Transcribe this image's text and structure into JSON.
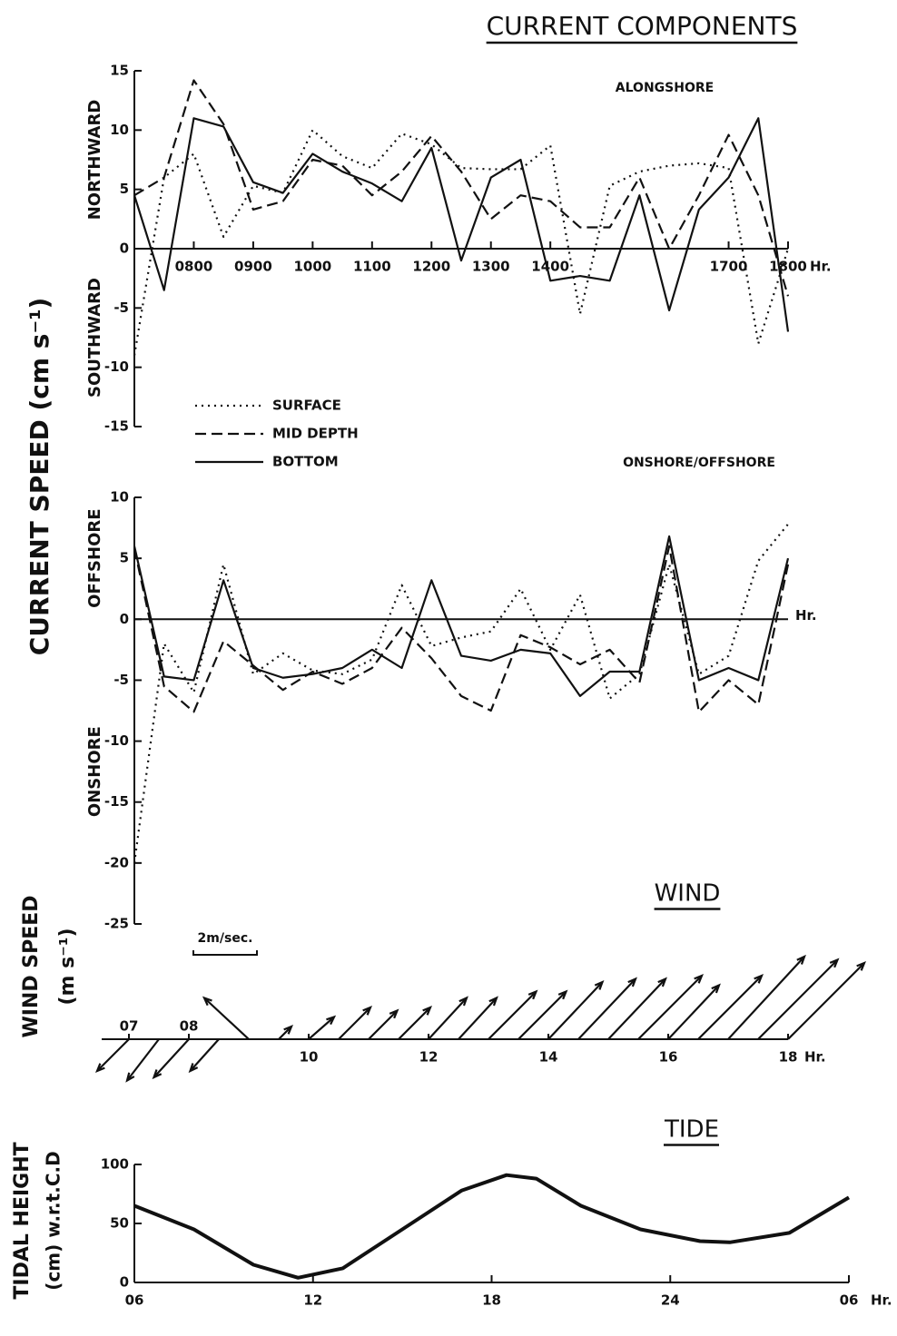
{
  "chart_data": [
    {
      "type": "line",
      "title": "CURRENT COMPONENTS",
      "panel_label": "ALONGSHORE",
      "y_label": "CURRENT SPEED (cm s⁻¹)",
      "y_upper_label": "NORTHWARD",
      "y_lower_label": "SOUTHWARD",
      "x": [
        7,
        7.5,
        8,
        8.5,
        9,
        9.5,
        10,
        10.5,
        11,
        11.5,
        12,
        12.5,
        13,
        13.5,
        14,
        14.5,
        15,
        15.5,
        16,
        16.5,
        17,
        17.5,
        18
      ],
      "xlim": [
        7,
        18
      ],
      "ylim": [
        -15,
        15
      ],
      "yticks": [
        -15,
        -10,
        -5,
        0,
        5,
        10,
        15
      ],
      "xticks": [
        {
          "value": 8,
          "label": "0800"
        },
        {
          "value": 9,
          "label": "0900"
        },
        {
          "value": 10,
          "label": "1000"
        },
        {
          "value": 11,
          "label": "1100"
        },
        {
          "value": 12,
          "label": "1200"
        },
        {
          "value": 13,
          "label": "1300"
        },
        {
          "value": 14,
          "label": "1400"
        },
        {
          "value": 17,
          "label": "1700"
        },
        {
          "value": 18,
          "label": "1800"
        }
      ],
      "x_unit": "Hr.",
      "series": [
        {
          "name": "SURFACE",
          "dash": "dotted",
          "color": "#111",
          "values": [
            -9,
            6,
            8,
            1,
            5.3,
            4.7,
            10,
            7.8,
            6.8,
            9.7,
            8.8,
            6.8,
            6.7,
            6.7,
            8.7,
            -5.5,
            5.3,
            6.5,
            7,
            7.2,
            6.8,
            -8,
            0
          ]
        },
        {
          "name": "MID DEPTH",
          "dash": "dashed",
          "color": "#111",
          "values": [
            4.5,
            6,
            14.2,
            10.5,
            3.3,
            4,
            7.5,
            7,
            4.5,
            6.5,
            9.5,
            6.5,
            2.5,
            4.5,
            4,
            1.8,
            1.8,
            6,
            0,
            4.5,
            9.6,
            4.5,
            -4
          ]
        },
        {
          "name": "BOTTOM",
          "dash": "solid",
          "color": "#111",
          "values": [
            4.5,
            -3.5,
            11,
            10.3,
            5.6,
            4.7,
            8,
            6.5,
            5.5,
            4,
            8.5,
            -1,
            6,
            7.5,
            -2.7,
            -2.3,
            -2.7,
            4.5,
            -5.2,
            3.3,
            6,
            11,
            -7
          ]
        }
      ]
    },
    {
      "type": "line",
      "panel_label": "ONSHORE/OFFSHORE",
      "y_upper_label": "OFFSHORE",
      "y_lower_label": "ONSHORE",
      "x": [
        7,
        7.5,
        8,
        8.5,
        9,
        9.5,
        10,
        10.5,
        11,
        11.5,
        12,
        12.5,
        13,
        13.5,
        14,
        14.5,
        15,
        15.5,
        16,
        16.5,
        17,
        17.5,
        18
      ],
      "xlim": [
        7,
        18
      ],
      "ylim": [
        -25,
        10
      ],
      "yticks": [
        -25,
        -20,
        -15,
        -10,
        -5,
        0,
        5,
        10
      ],
      "x_unit": "Hr.",
      "series": [
        {
          "dash": "dotted",
          "color": "#111",
          "values": [
            -20,
            -2,
            -6,
            4.5,
            -4.5,
            -2.8,
            -4.2,
            -4.5,
            -3.3,
            2.8,
            -2.2,
            -1.5,
            -1,
            2.5,
            -2.5,
            2,
            -6.5,
            -4.5,
            4.5,
            -4.5,
            -3,
            4.8,
            7.8
          ]
        },
        {
          "dash": "dashed",
          "color": "#111",
          "values": [
            5.8,
            -5.5,
            -7.6,
            -1.8,
            -3.8,
            -5.8,
            -4.3,
            -5.3,
            -4,
            -0.7,
            -3.2,
            -6.3,
            -7.5,
            -1.3,
            -2.3,
            -3.7,
            -2.5,
            -5.2,
            6,
            -7.6,
            -5,
            -7,
            4.5
          ]
        },
        {
          "dash": "solid",
          "color": "#111",
          "values": [
            6,
            -4.7,
            -5,
            3.2,
            -4,
            -4.8,
            -4.5,
            -4,
            -2.5,
            -4,
            3.2,
            -3,
            -3.4,
            -2.5,
            -2.8,
            -6.3,
            -4.3,
            -4.3,
            6.8,
            -5,
            -4,
            -5,
            5
          ]
        }
      ]
    },
    {
      "type": "quiver",
      "title": "WIND",
      "y_label": "WIND SPEED",
      "y_label_2": "(m s⁻¹)",
      "x": [
        7,
        7.5,
        8,
        8.5,
        9,
        9.5,
        10,
        10.5,
        11,
        11.5,
        12,
        12.5,
        13,
        13.5,
        14,
        14.5,
        15,
        15.5,
        16,
        16.5,
        17,
        17.5,
        18
      ],
      "u": [
        -1.0,
        -1.0,
        -1.1,
        -0.9,
        -1.4,
        0.4,
        0.8,
        1.0,
        0.9,
        1.0,
        1.2,
        1.2,
        1.5,
        1.5,
        1.7,
        1.8,
        1.8,
        2.0,
        1.6,
        2.0,
        2.4,
        2.5,
        2.4
      ],
      "v": [
        -1.0,
        -1.3,
        -1.2,
        -1.0,
        1.3,
        0.4,
        0.7,
        1.0,
        0.9,
        1.0,
        1.3,
        1.3,
        1.5,
        1.5,
        1.8,
        1.9,
        1.9,
        2.0,
        1.7,
        2.0,
        2.6,
        2.5,
        2.4
      ],
      "xlim": [
        7,
        18
      ],
      "xticks": [
        {
          "value": 7,
          "label": "07"
        },
        {
          "value": 8,
          "label": "08"
        },
        10,
        12,
        14,
        16,
        18
      ],
      "x_unit": "Hr.",
      "scale_value": 2,
      "scale_label": "2m/sec.",
      "color": "#111"
    },
    {
      "type": "line",
      "title": "TIDE",
      "y_label": "TIDAL HEIGHT",
      "y_label_2": "(cm) w.r.t.C.D",
      "x": [
        6,
        8,
        10,
        11.5,
        13,
        15,
        17,
        18.5,
        19.5,
        21,
        23,
        25,
        26,
        28,
        30
      ],
      "xlim": [
        6,
        30
      ],
      "ylim": [
        0,
        100
      ],
      "yticks": [
        0,
        50,
        100
      ],
      "xticks": [
        {
          "value": 6,
          "label": "06"
        },
        12,
        18,
        24,
        {
          "value": 30,
          "label": "06"
        }
      ],
      "x_unit": "Hr.",
      "series": [
        {
          "dash": "solid",
          "color": "#111",
          "values": [
            65,
            45,
            15,
            4,
            12,
            45,
            78,
            91,
            88,
            65,
            45,
            35,
            34,
            42,
            72
          ]
        }
      ]
    }
  ]
}
